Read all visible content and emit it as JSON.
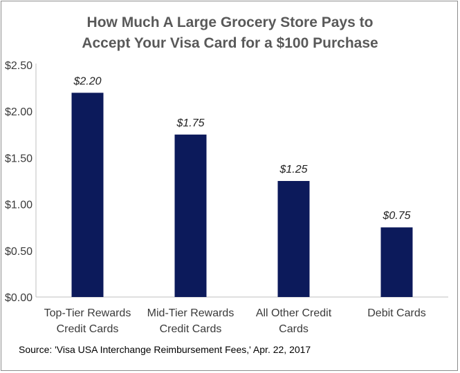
{
  "title_lines": [
    "How Much A Large Grocery Store Pays to",
    "Accept Your Visa Card for a $100 Purchase"
  ],
  "source": "Source: 'Visa USA Interchange Reimbursement Fees,' Apr. 22, 2017",
  "colors": {
    "bar": "#0c1a5b",
    "axis": "#bfbfbf",
    "title": "#595959",
    "text": "#3a3a3a"
  },
  "chart_data": {
    "type": "bar",
    "title": "How Much A Large Grocery Store Pays to Accept Your Visa Card for a $100 Purchase",
    "categories": [
      [
        "Top-Tier Rewards",
        "Credit Cards"
      ],
      [
        "Mid-Tier Rewards",
        "Credit Cards"
      ],
      [
        "All Other Credit",
        "Cards"
      ],
      [
        "Debit Cards"
      ]
    ],
    "values": [
      2.2,
      1.75,
      1.25,
      0.75
    ],
    "data_labels": [
      "$2.20",
      "$1.75",
      "$1.25",
      "$0.75"
    ],
    "yticks": [
      0,
      0.5,
      1.0,
      1.5,
      2.0,
      2.5
    ],
    "ytick_labels": [
      "$0.00",
      "$0.50",
      "$1.00",
      "$1.50",
      "$2.00",
      "$2.50"
    ],
    "ylim": [
      0,
      2.5
    ],
    "xlabel": "",
    "ylabel": "",
    "grid": false,
    "legend": "none"
  }
}
